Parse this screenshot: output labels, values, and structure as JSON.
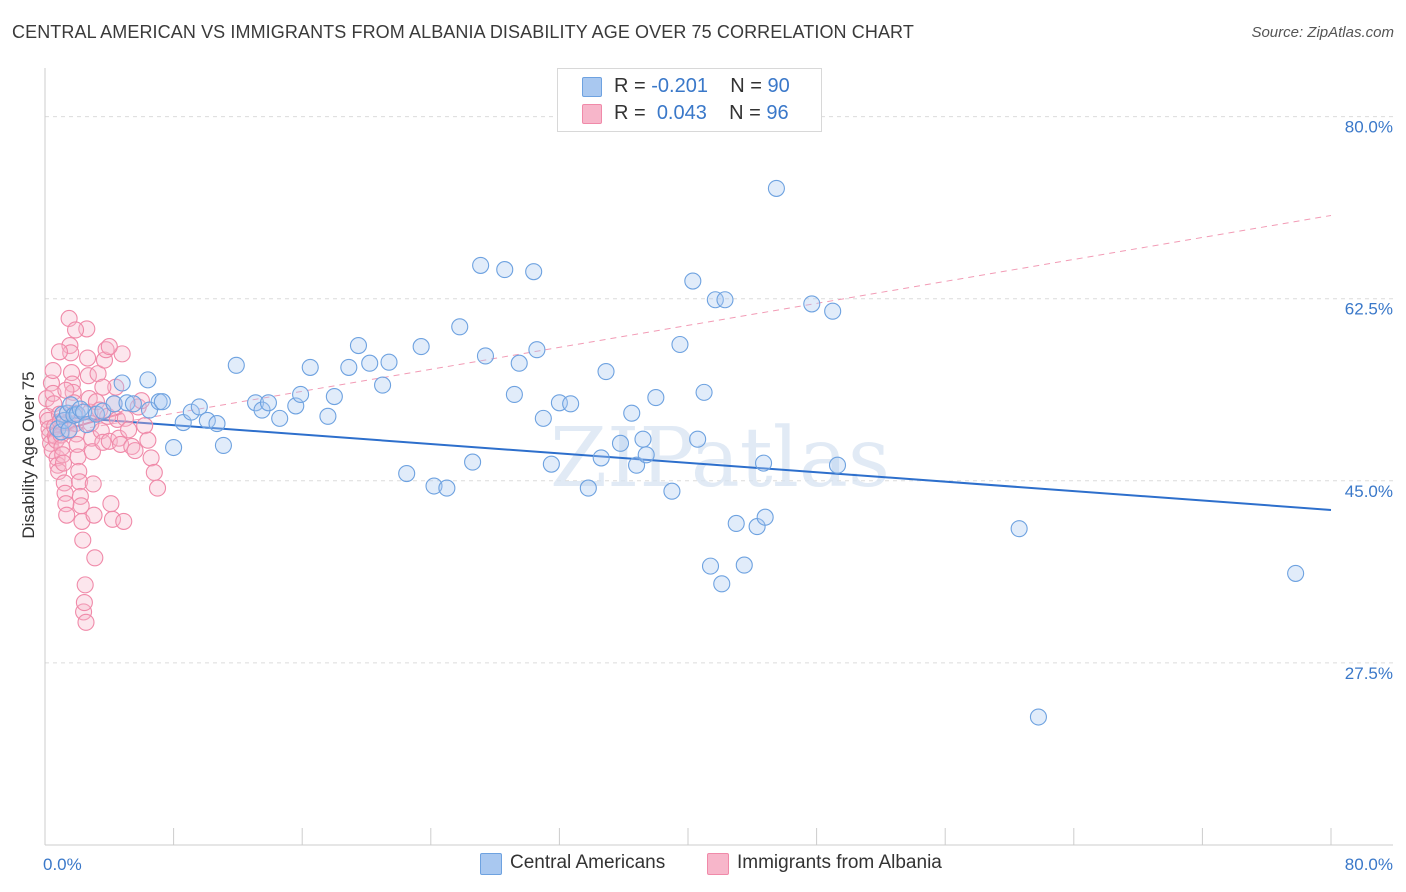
{
  "title": "CENTRAL AMERICAN VS IMMIGRANTS FROM ALBANIA DISABILITY AGE OVER 75 CORRELATION CHART",
  "source": "Source: ZipAtlas.com",
  "watermark": "ZIPatlas",
  "legend": {
    "rows": [
      {
        "r_label": "R =",
        "r_value": "-0.201",
        "n_label": "N =",
        "n_value": "90",
        "color": "#a9c8f0"
      },
      {
        "r_label": "R =",
        "r_value": "0.043",
        "n_label": "N =",
        "n_value": "96",
        "color": "#f7b6ca"
      }
    ]
  },
  "bottom_legend": [
    {
      "label": "Central Americans",
      "color": "#a9c8f0"
    },
    {
      "label": "Immigrants from Albania",
      "color": "#f7b6ca"
    }
  ],
  "chart_data": {
    "type": "scatter",
    "title": "CENTRAL AMERICAN VS IMMIGRANTS FROM ALBANIA DISABILITY AGE OVER 75 CORRELATION CHART",
    "xlabel": "",
    "ylabel": "Disability Age Over 75",
    "xlim": [
      0,
      80
    ],
    "ylim": [
      10,
      84
    ],
    "x_tick_labels": [
      "0.0%",
      "80.0%"
    ],
    "y_tick_labels": [
      "80.0%",
      "62.5%",
      "45.0%",
      "27.5%"
    ],
    "y_ticks": [
      80.0,
      62.5,
      45.0,
      27.5
    ],
    "grid": "horizontal dashed",
    "series": [
      {
        "name": "Central Americans",
        "color": "#6ea2e0",
        "trend": {
          "x": [
            0.5,
            80
          ],
          "y": [
            51.2,
            42.2
          ],
          "style": "solid"
        },
        "points": [
          [
            0.8,
            50.0
          ],
          [
            1.0,
            49.7
          ],
          [
            1.1,
            51.4
          ],
          [
            1.2,
            50.8
          ],
          [
            1.4,
            51.5
          ],
          [
            1.5,
            49.9
          ],
          [
            1.6,
            52.3
          ],
          [
            1.8,
            51.3
          ],
          [
            2.0,
            51.4
          ],
          [
            2.2,
            51.9
          ],
          [
            2.4,
            51.6
          ],
          [
            2.6,
            50.4
          ],
          [
            3.2,
            51.4
          ],
          [
            3.6,
            51.7
          ],
          [
            4.3,
            52.4
          ],
          [
            4.8,
            54.4
          ],
          [
            5.1,
            52.5
          ],
          [
            5.5,
            52.4
          ],
          [
            6.4,
            54.7
          ],
          [
            6.5,
            51.8
          ],
          [
            7.1,
            52.6
          ],
          [
            7.3,
            52.6
          ],
          [
            8.0,
            48.2
          ],
          [
            8.6,
            50.6
          ],
          [
            9.1,
            51.6
          ],
          [
            9.6,
            52.1
          ],
          [
            10.1,
            50.8
          ],
          [
            10.7,
            50.5
          ],
          [
            11.1,
            48.4
          ],
          [
            11.9,
            56.1
          ],
          [
            13.1,
            52.5
          ],
          [
            13.5,
            51.8
          ],
          [
            13.9,
            52.5
          ],
          [
            14.6,
            51.0
          ],
          [
            15.6,
            52.2
          ],
          [
            15.9,
            53.3
          ],
          [
            16.5,
            55.9
          ],
          [
            17.6,
            51.2
          ],
          [
            18.0,
            53.1
          ],
          [
            18.9,
            55.9
          ],
          [
            19.5,
            58.0
          ],
          [
            20.2,
            56.3
          ],
          [
            21.0,
            54.2
          ],
          [
            21.4,
            56.4
          ],
          [
            22.5,
            45.7
          ],
          [
            23.4,
            57.9
          ],
          [
            24.2,
            44.5
          ],
          [
            25.0,
            44.3
          ],
          [
            25.8,
            59.8
          ],
          [
            26.6,
            46.8
          ],
          [
            27.1,
            65.7
          ],
          [
            27.4,
            57.0
          ],
          [
            28.6,
            65.3
          ],
          [
            29.2,
            53.3
          ],
          [
            29.5,
            56.3
          ],
          [
            30.4,
            65.1
          ],
          [
            30.6,
            57.6
          ],
          [
            31.0,
            51.0
          ],
          [
            31.5,
            46.6
          ],
          [
            32.0,
            52.5
          ],
          [
            32.7,
            52.4
          ],
          [
            33.8,
            44.3
          ],
          [
            34.6,
            47.2
          ],
          [
            34.9,
            55.5
          ],
          [
            35.8,
            48.6
          ],
          [
            36.5,
            51.5
          ],
          [
            36.8,
            46.5
          ],
          [
            37.2,
            49.0
          ],
          [
            37.4,
            47.5
          ],
          [
            38.0,
            53.0
          ],
          [
            39.0,
            44.0
          ],
          [
            39.5,
            58.1
          ],
          [
            40.3,
            64.2
          ],
          [
            40.6,
            49.0
          ],
          [
            41.0,
            53.5
          ],
          [
            41.4,
            36.8
          ],
          [
            41.7,
            62.4
          ],
          [
            42.1,
            35.1
          ],
          [
            42.3,
            62.4
          ],
          [
            43.0,
            40.9
          ],
          [
            43.5,
            36.9
          ],
          [
            44.3,
            40.6
          ],
          [
            44.7,
            46.7
          ],
          [
            44.8,
            41.5
          ],
          [
            45.5,
            73.1
          ],
          [
            47.7,
            62.0
          ],
          [
            49.0,
            61.3
          ],
          [
            49.3,
            46.5
          ],
          [
            60.6,
            40.4
          ],
          [
            61.8,
            22.3
          ],
          [
            77.8,
            36.1
          ]
        ]
      },
      {
        "name": "Immigrants from Albania",
        "color": "#f08aa9",
        "trend": {
          "x": [
            0.1,
            4.8
          ],
          "y": [
            49.4,
            51.5
          ],
          "style": "solid"
        },
        "trend_extended": {
          "x": [
            0.1,
            80
          ],
          "y": [
            49.4,
            70.5
          ],
          "style": "dashed"
        },
        "points": [
          [
            0.1,
            52.9
          ],
          [
            0.15,
            51.2
          ],
          [
            0.2,
            50.8
          ],
          [
            0.25,
            50.0
          ],
          [
            0.3,
            49.4
          ],
          [
            0.35,
            48.6
          ],
          [
            0.4,
            54.4
          ],
          [
            0.45,
            47.9
          ],
          [
            0.5,
            53.4
          ],
          [
            0.55,
            52.4
          ],
          [
            0.6,
            50.2
          ],
          [
            0.65,
            49.3
          ],
          [
            0.7,
            48.9
          ],
          [
            0.75,
            47.2
          ],
          [
            0.8,
            46.5
          ],
          [
            0.85,
            45.9
          ],
          [
            0.9,
            51.4
          ],
          [
            0.95,
            50.7
          ],
          [
            1.0,
            49.4
          ],
          [
            1.05,
            48.2
          ],
          [
            1.1,
            47.5
          ],
          [
            1.15,
            46.7
          ],
          [
            1.2,
            44.8
          ],
          [
            1.25,
            43.8
          ],
          [
            1.3,
            42.8
          ],
          [
            1.35,
            41.7
          ],
          [
            1.4,
            50.6
          ],
          [
            1.45,
            49.8
          ],
          [
            1.5,
            60.6
          ],
          [
            1.55,
            58.0
          ],
          [
            1.6,
            57.3
          ],
          [
            1.65,
            55.4
          ],
          [
            1.7,
            54.3
          ],
          [
            1.75,
            53.5
          ],
          [
            1.8,
            52.5
          ],
          [
            1.85,
            51.5
          ],
          [
            1.9,
            50.5
          ],
          [
            1.95,
            49.5
          ],
          [
            2.0,
            48.5
          ],
          [
            2.05,
            47.3
          ],
          [
            2.1,
            45.9
          ],
          [
            2.15,
            44.9
          ],
          [
            2.2,
            43.5
          ],
          [
            2.25,
            42.6
          ],
          [
            2.3,
            41.1
          ],
          [
            2.35,
            39.3
          ],
          [
            2.4,
            32.4
          ],
          [
            2.45,
            33.3
          ],
          [
            2.5,
            35.0
          ],
          [
            2.55,
            31.4
          ],
          [
            2.6,
            59.6
          ],
          [
            2.65,
            56.8
          ],
          [
            2.7,
            55.1
          ],
          [
            2.75,
            52.9
          ],
          [
            2.8,
            51.6
          ],
          [
            2.85,
            50.5
          ],
          [
            2.9,
            49.1
          ],
          [
            2.95,
            47.8
          ],
          [
            3.0,
            44.7
          ],
          [
            3.05,
            41.7
          ],
          [
            3.1,
            37.6
          ],
          [
            3.2,
            52.6
          ],
          [
            3.3,
            55.3
          ],
          [
            3.4,
            51.8
          ],
          [
            3.5,
            49.8
          ],
          [
            3.6,
            48.7
          ],
          [
            3.7,
            56.6
          ],
          [
            3.8,
            57.6
          ],
          [
            3.9,
            51.2
          ],
          [
            4.0,
            48.8
          ],
          [
            4.1,
            42.8
          ],
          [
            4.2,
            41.3
          ],
          [
            4.3,
            52.4
          ],
          [
            4.4,
            54.0
          ],
          [
            4.5,
            50.9
          ],
          [
            4.6,
            49.1
          ],
          [
            4.7,
            48.5
          ],
          [
            4.8,
            57.2
          ],
          [
            5.0,
            51.0
          ],
          [
            5.2,
            49.9
          ],
          [
            5.4,
            48.3
          ],
          [
            5.6,
            47.9
          ],
          [
            5.8,
            52.1
          ],
          [
            6.0,
            52.7
          ],
          [
            6.2,
            50.3
          ],
          [
            6.4,
            48.9
          ],
          [
            6.6,
            47.2
          ],
          [
            6.8,
            45.8
          ],
          [
            7.0,
            44.3
          ],
          [
            4.9,
            41.1
          ],
          [
            4.0,
            57.9
          ],
          [
            3.6,
            54.0
          ],
          [
            1.9,
            59.5
          ],
          [
            1.3,
            53.7
          ],
          [
            0.9,
            57.4
          ],
          [
            0.5,
            55.6
          ]
        ]
      }
    ]
  }
}
